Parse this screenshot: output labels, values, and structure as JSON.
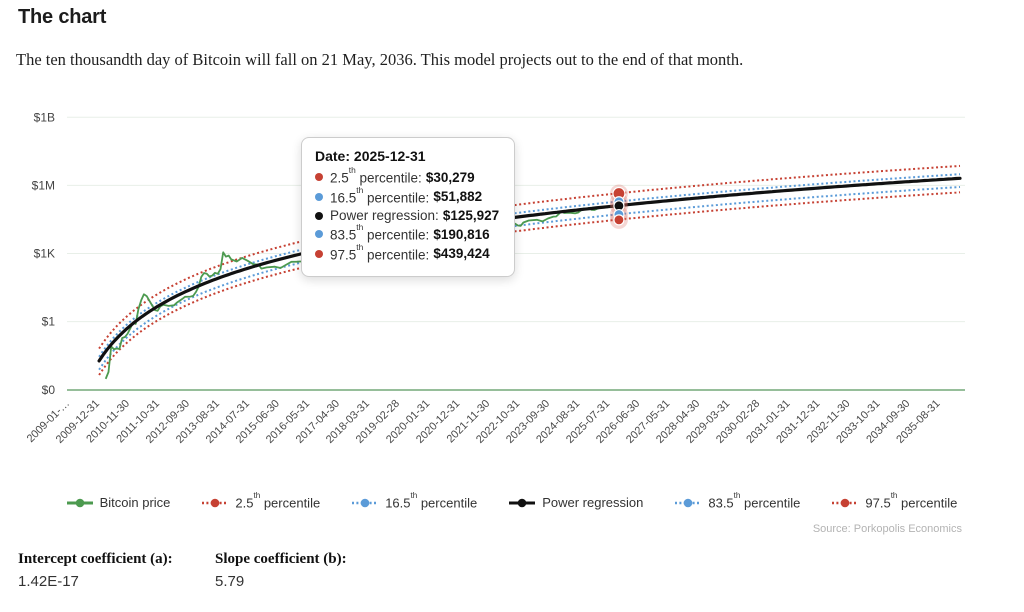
{
  "page": {
    "title": "The chart",
    "subtitle": "The ten thousandth day of Bitcoin will fall on 21 May, 2036. This model projects out to the end of that month.",
    "source": "Source: Porkopolis Economics"
  },
  "tooltip": {
    "title_prefix": "Date:",
    "date": "2025-12-31",
    "rows": [
      {
        "before": "2.5",
        "sup": "th",
        "after": " percentile:",
        "value": "$30,279",
        "color": "#c64133"
      },
      {
        "before": "16.5",
        "sup": "th",
        "after": " percentile:",
        "value": "$51,882",
        "color": "#5b9bd8"
      },
      {
        "before": "Power regression:",
        "sup": "",
        "after": "",
        "value": "$125,927",
        "color": "#111111"
      },
      {
        "before": "83.5",
        "sup": "th",
        "after": " percentile:",
        "value": "$190,816",
        "color": "#5b9bd8"
      },
      {
        "before": "97.5",
        "sup": "th",
        "after": " percentile:",
        "value": "$439,424",
        "color": "#c64133"
      }
    ]
  },
  "legend": [
    {
      "before": "Bitcoin price",
      "sup": "",
      "after": "",
      "color": "#4c9a4f",
      "style": "solid"
    },
    {
      "before": "2.5",
      "sup": "th",
      "after": " percentile",
      "color": "#c64133",
      "style": "dotted"
    },
    {
      "before": "16.5",
      "sup": "th",
      "after": " percentile",
      "color": "#5b9bd8",
      "style": "dotted"
    },
    {
      "before": "Power regression",
      "sup": "",
      "after": "",
      "color": "#111111",
      "style": "solid"
    },
    {
      "before": "83.5",
      "sup": "th",
      "after": " percentile",
      "color": "#5b9bd8",
      "style": "dotted"
    },
    {
      "before": "97.5",
      "sup": "th",
      "after": " percentile",
      "color": "#c64133",
      "style": "dotted"
    }
  ],
  "coefficients": {
    "intercept_label": "Intercept coefficient (a):",
    "intercept_value": "1.42E-17",
    "slope_label": "Slope coefficient (b):",
    "slope_value": "5.79"
  },
  "chart_data": {
    "type": "line",
    "y_axis": {
      "scale": "log",
      "tick_labels": [
        "$1B",
        "$1M",
        "$1K",
        "$1",
        "$0"
      ],
      "tick_values": [
        1000000000,
        1000000,
        1000,
        1,
        0
      ]
    },
    "x_axis": {
      "tick_labels": [
        "2009-01-…",
        "2009-12-31",
        "2010-11-30",
        "2011-10-31",
        "2012-09-30",
        "2013-08-31",
        "2014-07-31",
        "2015-06-30",
        "2016-05-31",
        "2017-04-30",
        "2018-03-31",
        "2019-02-28",
        "2020-01-31",
        "2020-12-31",
        "2021-11-30",
        "2022-10-31",
        "2023-09-30",
        "2024-08-31",
        "2025-07-31",
        "2026-06-30",
        "2027-05-31",
        "2028-04-30",
        "2029-03-31",
        "2030-02-28",
        "2031-01-31",
        "2031-12-31",
        "2032-11-30",
        "2033-10-31",
        "2034-09-30",
        "2035-08-31"
      ],
      "tick_dates": [
        "2009-01-31",
        "2009-12-31",
        "2010-11-30",
        "2011-10-31",
        "2012-09-30",
        "2013-08-31",
        "2014-07-31",
        "2015-06-30",
        "2016-05-31",
        "2017-04-30",
        "2018-03-31",
        "2019-02-28",
        "2020-01-31",
        "2020-12-31",
        "2021-11-30",
        "2022-10-31",
        "2023-09-30",
        "2024-08-31",
        "2025-07-31",
        "2026-06-30",
        "2027-05-31",
        "2028-04-30",
        "2029-03-31",
        "2030-02-28",
        "2031-01-31",
        "2031-12-31",
        "2032-11-30",
        "2033-10-31",
        "2034-09-30",
        "2035-08-31"
      ]
    },
    "regression": {
      "name": "Power regression",
      "intercept_a": 1.42e-17,
      "slope_b": 5.79,
      "origin_date": "2009-01-03",
      "start_date": "2010-02-15",
      "end_date": "2036-05-31",
      "color": "#111111"
    },
    "percentile_bands": [
      {
        "name": "2.5th percentile",
        "multiplier": 0.2404,
        "color": "#c64133"
      },
      {
        "name": "16.5th percentile",
        "multiplier": 0.412,
        "color": "#5b9bd8"
      },
      {
        "name": "83.5th percentile",
        "multiplier": 1.5153,
        "color": "#5b9bd8"
      },
      {
        "name": "97.5th percentile",
        "multiplier": 3.4895,
        "color": "#c64133"
      }
    ],
    "bitcoin_price": {
      "name": "Bitcoin price",
      "color": "#4c9a4f",
      "points": [
        [
          "2010-04-30",
          0.003
        ],
        [
          "2010-05-31",
          0.006
        ],
        [
          "2010-06-30",
          0.08
        ],
        [
          "2010-07-31",
          0.06
        ],
        [
          "2010-08-31",
          0.065
        ],
        [
          "2010-09-30",
          0.062
        ],
        [
          "2010-10-31",
          0.19
        ],
        [
          "2010-11-30",
          0.21
        ],
        [
          "2010-12-31",
          0.3
        ],
        [
          "2011-01-31",
          0.52
        ],
        [
          "2011-02-28",
          0.9
        ],
        [
          "2011-03-31",
          0.79
        ],
        [
          "2011-04-30",
          3.5
        ],
        [
          "2011-05-31",
          8.7
        ],
        [
          "2011-06-30",
          16
        ],
        [
          "2011-07-31",
          13.3
        ],
        [
          "2011-08-31",
          8.2
        ],
        [
          "2011-09-30",
          5.1
        ],
        [
          "2011-10-31",
          3.2
        ],
        [
          "2011-11-30",
          3
        ],
        [
          "2011-12-31",
          4.7
        ],
        [
          "2012-01-31",
          5.5
        ],
        [
          "2012-03-31",
          4.9
        ],
        [
          "2012-05-31",
          5.2
        ],
        [
          "2012-06-30",
          6.7
        ],
        [
          "2012-08-31",
          10
        ],
        [
          "2012-09-30",
          12.4
        ],
        [
          "2012-11-30",
          12.6
        ],
        [
          "2012-12-31",
          13.5
        ],
        [
          "2013-01-31",
          20.4
        ],
        [
          "2013-02-28",
          33.4
        ],
        [
          "2013-03-31",
          93
        ],
        [
          "2013-04-30",
          139
        ],
        [
          "2013-05-31",
          128
        ],
        [
          "2013-06-30",
          97
        ],
        [
          "2013-07-31",
          106
        ],
        [
          "2013-08-31",
          141
        ],
        [
          "2013-09-30",
          127
        ],
        [
          "2013-10-31",
          204
        ],
        [
          "2013-11-30",
          1130
        ],
        [
          "2013-12-31",
          732
        ],
        [
          "2014-01-31",
          806
        ],
        [
          "2014-02-28",
          550
        ],
        [
          "2014-04-30",
          446
        ],
        [
          "2014-06-30",
          640
        ],
        [
          "2014-08-31",
          478
        ],
        [
          "2014-10-31",
          338
        ],
        [
          "2014-12-31",
          320
        ],
        [
          "2015-01-31",
          217
        ],
        [
          "2015-03-31",
          244
        ],
        [
          "2015-06-30",
          263
        ],
        [
          "2015-08-31",
          230
        ],
        [
          "2015-10-31",
          314
        ],
        [
          "2015-12-31",
          430
        ],
        [
          "2016-02-29",
          437
        ],
        [
          "2016-04-30",
          448
        ],
        [
          "2016-06-30",
          670
        ],
        [
          "2016-08-31",
          575
        ],
        [
          "2016-10-31",
          700
        ],
        [
          "2016-12-31",
          963
        ],
        [
          "2017-02-28",
          1180
        ],
        [
          "2017-03-31",
          1080
        ],
        [
          "2017-05-31",
          2290
        ],
        [
          "2017-06-30",
          2480
        ],
        [
          "2017-08-31",
          4700
        ],
        [
          "2017-10-31",
          6450
        ],
        [
          "2017-12-31",
          14160
        ],
        [
          "2018-01-31",
          10220
        ],
        [
          "2018-03-31",
          6940
        ],
        [
          "2018-05-31",
          7500
        ],
        [
          "2018-06-30",
          6400
        ],
        [
          "2018-08-31",
          7030
        ],
        [
          "2018-10-31",
          6320
        ],
        [
          "2018-11-30",
          4020
        ],
        [
          "2018-12-31",
          3740
        ],
        [
          "2019-02-28",
          3850
        ],
        [
          "2019-04-30",
          5320
        ],
        [
          "2019-06-30",
          10800
        ],
        [
          "2019-08-31",
          9600
        ],
        [
          "2019-10-31",
          9150
        ],
        [
          "2019-12-31",
          7200
        ],
        [
          "2020-02-29",
          8550
        ],
        [
          "2020-03-31",
          6440
        ],
        [
          "2020-05-31",
          9450
        ],
        [
          "2020-07-31",
          11350
        ],
        [
          "2020-09-30",
          10780
        ],
        [
          "2020-10-31",
          13800
        ],
        [
          "2020-11-30",
          19700
        ],
        [
          "2020-12-31",
          29000
        ],
        [
          "2021-01-31",
          33100
        ],
        [
          "2021-02-28",
          45200
        ],
        [
          "2021-03-31",
          58800
        ],
        [
          "2021-04-30",
          57750
        ],
        [
          "2021-05-31",
          37300
        ],
        [
          "2021-06-30",
          35000
        ],
        [
          "2021-07-31",
          41500
        ],
        [
          "2021-08-31",
          47100
        ],
        [
          "2021-10-31",
          61300
        ],
        [
          "2021-11-30",
          57000
        ],
        [
          "2021-12-31",
          46200
        ],
        [
          "2022-01-31",
          38500
        ],
        [
          "2022-03-31",
          45500
        ],
        [
          "2022-04-30",
          37700
        ],
        [
          "2022-06-30",
          19000
        ],
        [
          "2022-08-31",
          20050
        ],
        [
          "2022-10-31",
          20500
        ],
        [
          "2022-11-30",
          17160
        ],
        [
          "2022-12-31",
          16550
        ],
        [
          "2023-01-31",
          23100
        ],
        [
          "2023-03-31",
          28500
        ],
        [
          "2023-06-30",
          30400
        ],
        [
          "2023-08-31",
          25900
        ],
        [
          "2023-10-31",
          34650
        ],
        [
          "2023-12-31",
          42250
        ],
        [
          "2024-01-31",
          42580
        ],
        [
          "2024-03-31",
          71300
        ],
        [
          "2024-04-30",
          60640
        ],
        [
          "2024-06-30",
          62700
        ],
        [
          "2024-08-31",
          58970
        ],
        [
          "2024-09-30",
          63300
        ],
        [
          "2024-11-30",
          96400
        ],
        [
          "2024-12-31",
          93400
        ],
        [
          "2025-01-31",
          102400
        ],
        [
          "2025-02-28",
          84350
        ],
        [
          "2025-03-31",
          82500
        ],
        [
          "2025-05-31",
          104600
        ],
        [
          "2025-06-30",
          107000
        ],
        [
          "2025-08-31",
          108200
        ],
        [
          "2025-09-30",
          114000
        ],
        [
          "2025-11-30",
          108000
        ],
        [
          "2025-12-31",
          110000
        ]
      ]
    },
    "highlight": {
      "date": "2025-12-31",
      "halo_color": "rgba(219,106,97,0.27)",
      "points": [
        {
          "series": "97.5th percentile",
          "value": 439424,
          "color": "#c64133"
        },
        {
          "series": "83.5th percentile",
          "value": 190816,
          "color": "#5b9bd8"
        },
        {
          "series": "Power regression",
          "value": 125927,
          "color": "#111111"
        },
        {
          "series": "16.5th percentile",
          "value": 51882,
          "color": "#5b9bd8"
        },
        {
          "series": "2.5th percentile",
          "value": 30279,
          "color": "#c64133"
        }
      ]
    }
  }
}
